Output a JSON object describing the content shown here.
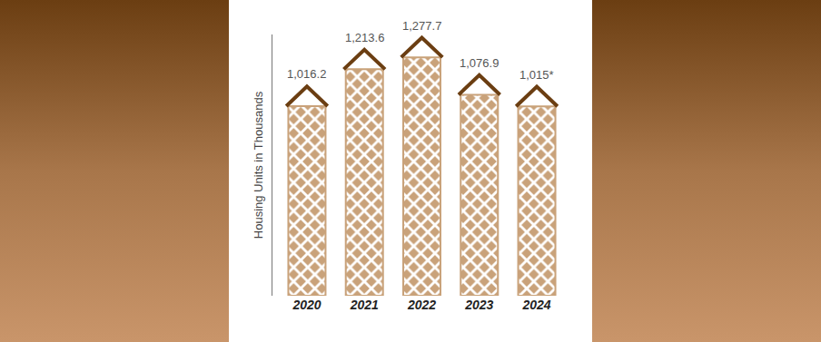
{
  "chart_data": {
    "type": "bar",
    "ylabel": "Housing Units in Thousands",
    "categories": [
      "2020",
      "2021",
      "2022",
      "2023",
      "2024"
    ],
    "values": [
      1016.2,
      1213.6,
      1277.7,
      1076.9,
      1015
    ],
    "value_labels": [
      "1,016.2",
      "1,213.6",
      "1,277.7",
      "1,076.9",
      "1,015*"
    ],
    "data_labels": true,
    "color": "#c9a27a",
    "ylim": [
      0,
      1400
    ],
    "tick_labels": "x",
    "grid": false
  }
}
